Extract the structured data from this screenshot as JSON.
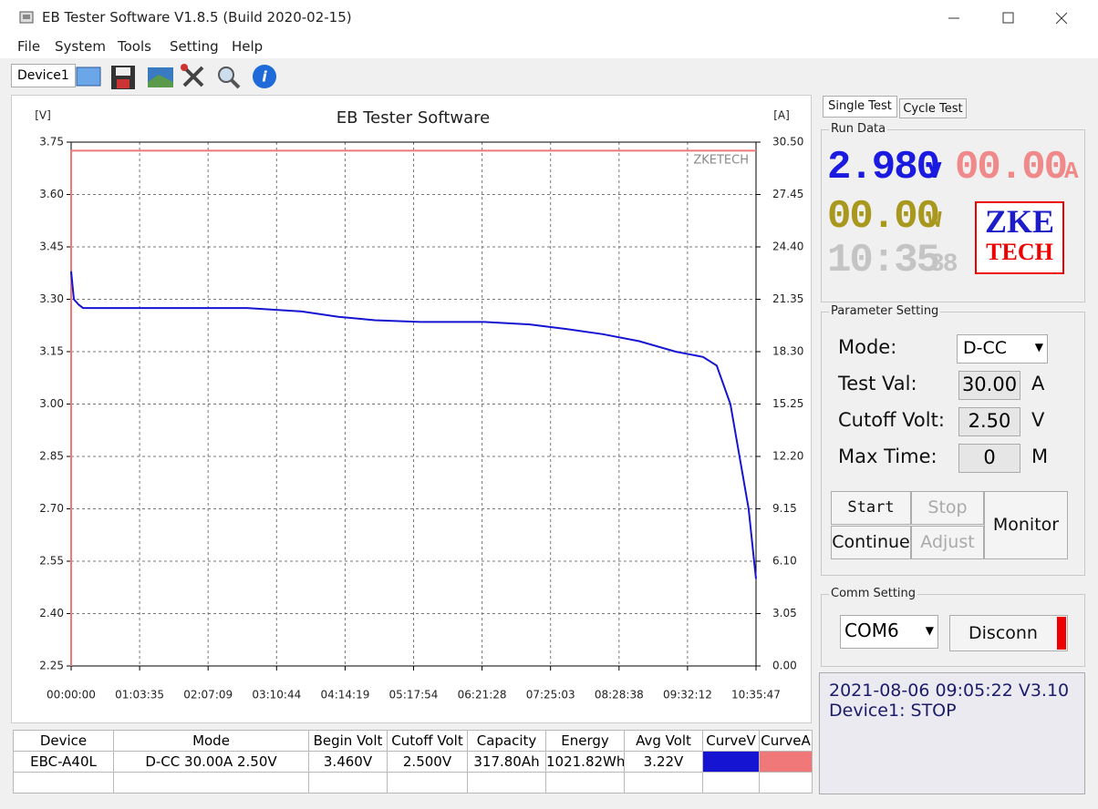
{
  "window": {
    "title": "EB Tester Software V1.8.5 (Build 2020-02-15)"
  },
  "menu": [
    "File",
    "System",
    "Tools",
    "Setting",
    "Help"
  ],
  "toolbar": {
    "device": "Device1"
  },
  "chart_data": {
    "type": "line",
    "title": "EB Tester Software",
    "y_label": "[V]",
    "y2_label": "[A]",
    "watermark": "ZKETECH",
    "xlim": [
      0,
      38147
    ],
    "xticks": [
      {
        "value": 0,
        "label": "00:00:00"
      },
      {
        "value": 3815,
        "label": "01:03:35"
      },
      {
        "value": 7629,
        "label": "02:07:09"
      },
      {
        "value": 11444,
        "label": "03:10:44"
      },
      {
        "value": 15259,
        "label": "04:14:19"
      },
      {
        "value": 19074,
        "label": "05:17:54"
      },
      {
        "value": 22888,
        "label": "06:21:28"
      },
      {
        "value": 26703,
        "label": "07:25:03"
      },
      {
        "value": 30518,
        "label": "08:28:38"
      },
      {
        "value": 34332,
        "label": "09:32:12"
      },
      {
        "value": 38147,
        "label": "10:35:47"
      }
    ],
    "ylim": [
      2.25,
      3.75
    ],
    "yticks": [
      {
        "value": 2.25,
        "label": "2.25"
      },
      {
        "value": 2.4,
        "label": "2.40"
      },
      {
        "value": 2.55,
        "label": "2.55"
      },
      {
        "value": 2.7,
        "label": "2.70"
      },
      {
        "value": 2.85,
        "label": "2.85"
      },
      {
        "value": 3,
        "label": "3.00"
      },
      {
        "value": 3.15,
        "label": "3.15"
      },
      {
        "value": 3.3,
        "label": "3.30"
      },
      {
        "value": 3.45,
        "label": "3.45"
      },
      {
        "value": 3.6,
        "label": "3.60"
      },
      {
        "value": 3.75,
        "label": "3.75"
      }
    ],
    "y2lim": [
      0,
      30.5
    ],
    "y2ticks": [
      {
        "value": 0,
        "label": "0.00"
      },
      {
        "value": 3.05,
        "label": "3.05"
      },
      {
        "value": 6.1,
        "label": "6.10"
      },
      {
        "value": 9.15,
        "label": "9.15"
      },
      {
        "value": 12.2,
        "label": "12.20"
      },
      {
        "value": 15.25,
        "label": "15.25"
      },
      {
        "value": 18.3,
        "label": "18.30"
      },
      {
        "value": 21.35,
        "label": "21.35"
      },
      {
        "value": 24.4,
        "label": "24.40"
      },
      {
        "value": 27.45,
        "label": "27.45"
      },
      {
        "value": 30.5,
        "label": "30.50"
      }
    ],
    "grid": true,
    "series": [
      {
        "name": "CurveV",
        "color": "#1414d2",
        "x": [
          0,
          152,
          406,
          660,
          9803,
          12850,
          14882,
          16913,
          19453,
          23008,
          25547,
          27579,
          29611,
          31642,
          33674,
          35197,
          35959,
          36721,
          37229,
          37737,
          38041,
          38147
        ],
        "values": [
          3.38,
          3.3,
          3.285,
          3.275,
          3.275,
          3.265,
          3.25,
          3.24,
          3.235,
          3.235,
          3.228,
          3.215,
          3.2,
          3.18,
          3.15,
          3.135,
          3.11,
          3.0,
          2.85,
          2.7,
          2.55,
          2.5
        ]
      },
      {
        "name": "CurveA",
        "color": "#f07878",
        "axis": "y2",
        "x": [
          0,
          0,
          38147
        ],
        "values": [
          0,
          30,
          30
        ]
      }
    ]
  },
  "table": {
    "header": [
      "Device",
      "Mode",
      "Begin Volt",
      "Cutoff Volt",
      "Capacity",
      "Energy",
      "Avg Volt",
      "CurveV",
      "CurveA"
    ],
    "rows": [
      [
        "EBC-A40L",
        "D-CC  30.00A  2.50V",
        "3.460V",
        "2.500V",
        "317.80Ah",
        "1021.82Wh",
        "3.22V"
      ]
    ]
  },
  "panel": {
    "tabs": [
      "Single Test",
      "Cycle Test"
    ],
    "run_data": {
      "title": "Run Data",
      "voltage": "2.980",
      "voltage_unit": "V",
      "current": "00.00",
      "current_unit": "A",
      "power": "00.00",
      "power_unit": "W",
      "time": "10:35",
      "seconds": "38",
      "logo_top": "ZKE",
      "logo_bottom": "TECH"
    },
    "parameters": {
      "title": "Parameter Setting",
      "mode_label": "Mode:",
      "mode": "D-CC",
      "test_label": "Test Val:",
      "test": "30.00",
      "test_unit": "A",
      "cutoff_label": "Cutoff Volt:",
      "cutoff": "2.50",
      "cutoff_unit": "V",
      "time_label": "Max Time:",
      "time": "0",
      "time_unit": "M",
      "buttons": [
        "Start",
        "Stop",
        "Continue",
        "Adjust",
        "Monitor"
      ]
    },
    "comm": {
      "title": "Comm Setting",
      "port": "COM6",
      "button": "Disconn"
    },
    "status": [
      "2021-08-06 09:05:22  V3.10",
      "Device1: STOP"
    ]
  }
}
